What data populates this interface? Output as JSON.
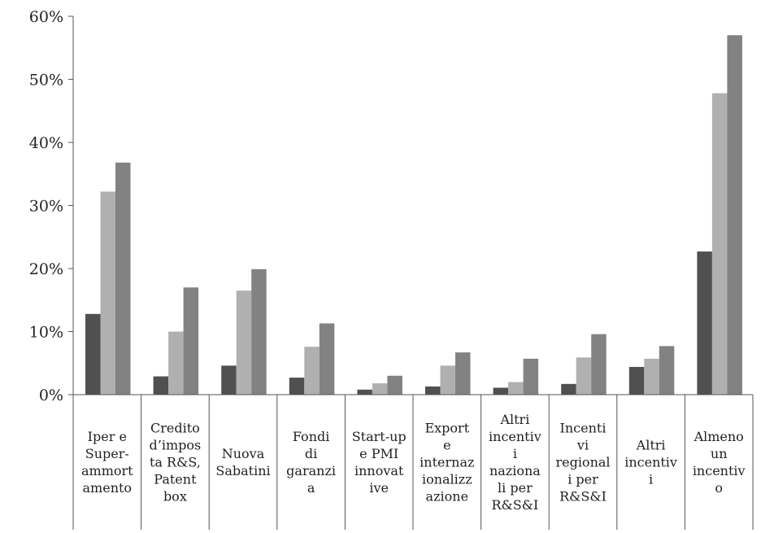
{
  "chart_data": {
    "type": "bar",
    "title": "",
    "xlabel": "",
    "ylabel": "",
    "ylim": [
      0,
      60
    ],
    "ytick_labels": [
      "0%",
      "10%",
      "20%",
      "30%",
      "40%",
      "50%",
      "60%"
    ],
    "ytick_values": [
      0,
      10,
      20,
      30,
      40,
      50,
      60
    ],
    "grid": false,
    "legend": "none",
    "categories": [
      [
        "Iper e",
        "Super-",
        "ammort",
        "amento"
      ],
      [
        "Credito",
        "d’impos",
        "ta R&S,",
        "Patent",
        "box"
      ],
      [
        "Nuova",
        "Sabatini"
      ],
      [
        "Fondi",
        "di",
        "garanzi",
        "a"
      ],
      [
        "Start-up",
        "e PMI",
        "innovat",
        "ive"
      ],
      [
        "Export",
        "e",
        "internaz",
        "ionalizz",
        "azione"
      ],
      [
        "Altri",
        "incentiv",
        "i",
        "naziona",
        "li per",
        "R&S&I"
      ],
      [
        "Incenti",
        "vi",
        "regional",
        "i per",
        "R&S&I"
      ],
      [
        "Altri",
        "incentiv",
        "i"
      ],
      [
        "Almeno",
        "un",
        "incentiv",
        "o"
      ]
    ],
    "series": [
      {
        "values": [
          12.8,
          2.9,
          4.6,
          2.7,
          0.8,
          1.3,
          1.1,
          1.7,
          4.4,
          22.7
        ],
        "color": "#505050"
      },
      {
        "values": [
          32.2,
          10.0,
          16.5,
          7.6,
          1.8,
          4.6,
          2.0,
          5.9,
          5.7,
          47.8
        ],
        "color": "#b0b0b0"
      },
      {
        "values": [
          36.8,
          17.0,
          19.9,
          11.3,
          3.0,
          6.7,
          5.7,
          9.6,
          7.7,
          57.0
        ],
        "color": "#828282"
      }
    ]
  }
}
